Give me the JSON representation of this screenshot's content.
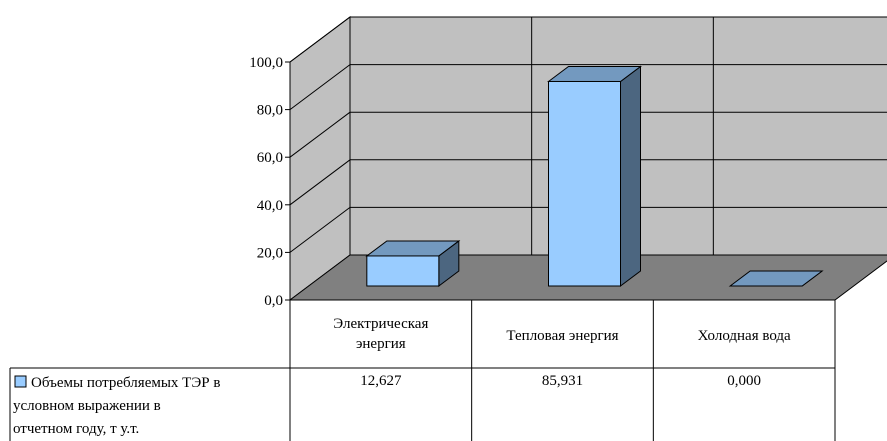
{
  "chart_data": {
    "type": "bar",
    "style": "3d-column-with-data-table",
    "categories": [
      "Электрическая энергия",
      "Тепловая энергия",
      "Холодная вода"
    ],
    "category_lines": [
      [
        "Электрическая",
        "энергия"
      ],
      [
        "Тепловая энергия"
      ],
      [
        "Холодная вода"
      ]
    ],
    "series": [
      {
        "name": "Объемы потребляемых ТЭР в условном выражении в отчетном году, т у.т.",
        "name_lines": [
          "Объемы потребляемых ТЭР в",
          "условном выражении в",
          "отчетном году, т у.т."
        ],
        "values": [
          12.627,
          85.931,
          0.0
        ],
        "value_labels": [
          "12,627",
          "85,931",
          "0,000"
        ],
        "color": "#99CCFF"
      }
    ],
    "ylim": [
      0,
      100
    ],
    "yticks": [
      "0,0",
      "20,0",
      "40,0",
      "60,0",
      "80,0",
      "100,0"
    ],
    "grid": true,
    "legend": "data-table",
    "colors": {
      "walls": "#C0C0C0",
      "floor": "#808080",
      "bar_front": "#99CCFF",
      "bar_top": "#7399BF",
      "bar_side": "#4C6680"
    }
  }
}
